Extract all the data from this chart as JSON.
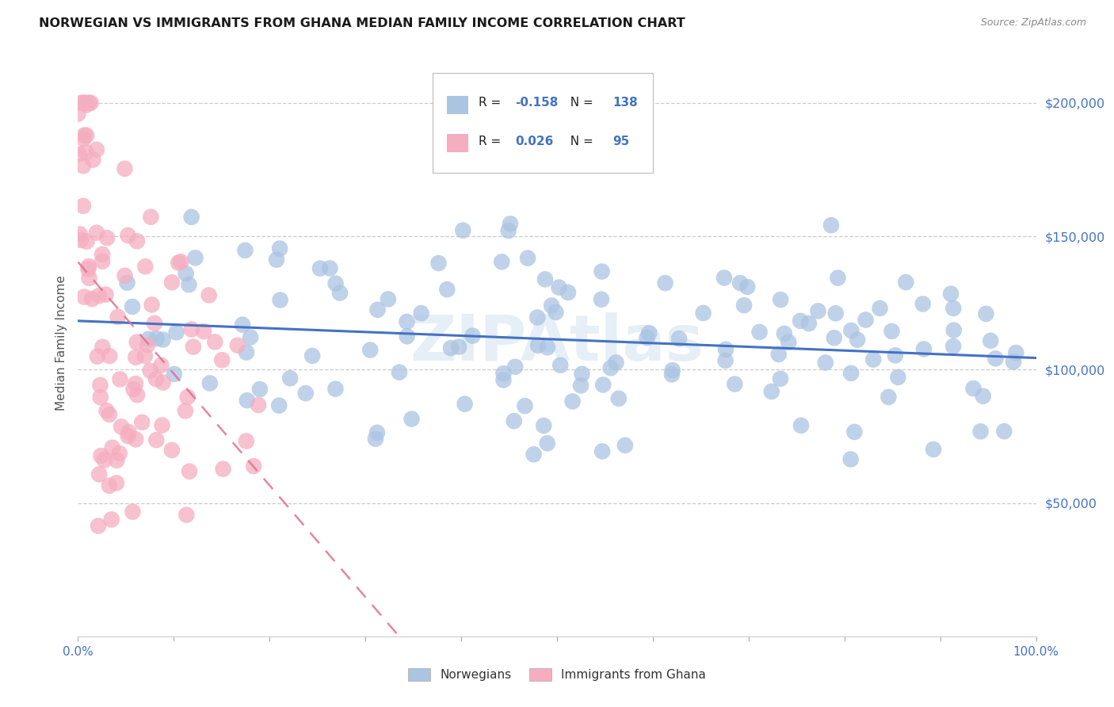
{
  "title": "NORWEGIAN VS IMMIGRANTS FROM GHANA MEDIAN FAMILY INCOME CORRELATION CHART",
  "source": "Source: ZipAtlas.com",
  "ylabel": "Median Family Income",
  "ytick_labels": [
    "$50,000",
    "$100,000",
    "$150,000",
    "$200,000"
  ],
  "ytick_values": [
    50000,
    100000,
    150000,
    200000
  ],
  "ylim": [
    0,
    220000
  ],
  "xlim": [
    0.0,
    1.0
  ],
  "watermark": "ZIPAtlas",
  "legend_R_norw": "-0.158",
  "legend_N_norw": "138",
  "legend_R_ghana": "0.026",
  "legend_N_ghana": "95",
  "norwegian_color": "#aac4e2",
  "norwegian_line_color": "#4472c4",
  "ghana_color": "#f5adc0",
  "ghana_line_color": "#e07090",
  "label_norw": "Norwegians",
  "label_ghana": "Immigrants from Ghana",
  "text_color_blue": "#4472c4",
  "title_color": "#1a1a1a",
  "source_color": "#888888",
  "ylabel_color": "#555555",
  "xtick_color": "#4472c4",
  "grid_color": "#cccccc"
}
